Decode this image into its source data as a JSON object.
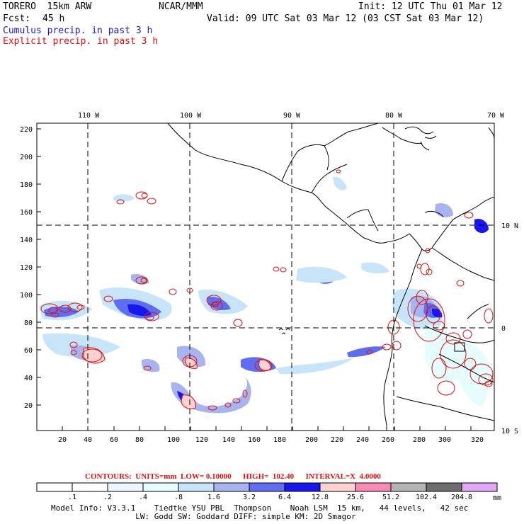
{
  "header": {
    "model": "TORERO  15km ARW",
    "org": "NCAR/MMM",
    "init": "Init: 12 UTC Thu 01 Mar 12",
    "fcst_label": "Fcst:",
    "fcst_value": "45 h",
    "valid": "Valid: 09 UTC Sat 03 Mar 12 (03 CST Sat 03 Mar 12)",
    "legend_cumulus": "Cumulus precip. in past 3 h",
    "legend_explicit": "Explicit precip. in past 3 h"
  },
  "colors": {
    "explicit_contour": "#e01010",
    "coast": "#000000",
    "grid": "#000000"
  },
  "axes": {
    "top_lon_labels": [
      "110 W",
      "100 W",
      "90 W",
      "80 W",
      "70 W"
    ],
    "right_lat_labels": [
      "10 N",
      "0",
      "10 S"
    ],
    "y_ticks": [
      "20",
      "40",
      "60",
      "80",
      "100",
      "120",
      "140",
      "160",
      "180",
      "200",
      "220"
    ],
    "x_ticks": [
      "20",
      "40",
      "60",
      "80",
      "100",
      "120",
      "140",
      "160",
      "180",
      "200",
      "220",
      "240",
      "260",
      "280",
      "300",
      "320"
    ]
  },
  "contours": {
    "summary": "CONTOURS:  UNITS=mm  LOW= 0.10000      HIGH=  102.40      INTERVAL=X  4.0000"
  },
  "colorbar": {
    "unit": "mm",
    "labels": [
      ".1",
      ".2",
      ".4",
      ".8",
      "1.6",
      "3.2",
      "6.4",
      "12.8",
      "25.6",
      "51.2",
      "102.4",
      "204.8"
    ],
    "colors": [
      "#ffffff",
      "#ffffff",
      "#eef6ff",
      "#e6fdfd",
      "#c8e4f8",
      "#a8b4f0",
      "#5f6df0",
      "#1818ee",
      "#ffd2d2",
      "#f78ab4",
      "#b4b4b4",
      "#6e6e6e",
      "#e3a8f3"
    ]
  },
  "model_info": {
    "line1": "Model Info: V3.3.1    Tiedtke YSU PBL  Thompson    Noah LSM  15 km,   44 levels,   42 sec",
    "line2": "                  LW: Godd SW: Goddard DIFF: simple KM: 2D Smagor"
  }
}
